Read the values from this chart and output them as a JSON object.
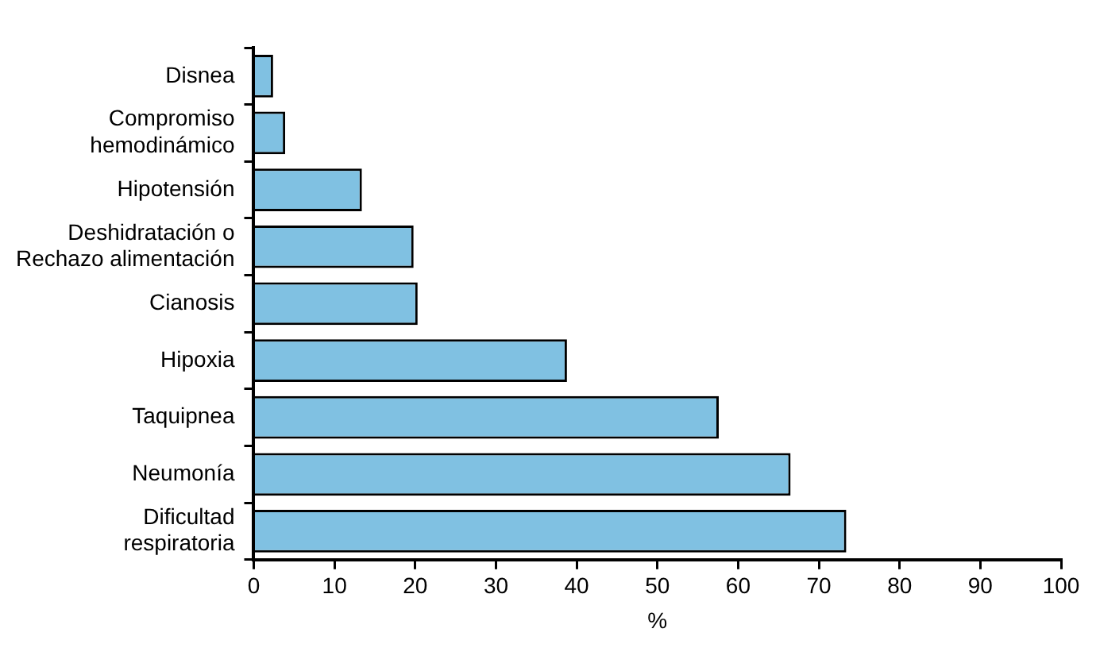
{
  "chart_data": {
    "type": "bar",
    "orientation": "horizontal",
    "xlabel": "%",
    "categories": [
      "Disnea",
      "Compromiso\nhemodinámico",
      "Hipotensión",
      "Deshidratación o\nRechazo alimentación",
      "Cianosis",
      "Hipoxia",
      "Taquipnea",
      "Neumonía",
      "Dificultad\nrespiratoria"
    ],
    "values": [
      2.4,
      3.9,
      13.4,
      19.8,
      20.3,
      38.8,
      57.6,
      66.5,
      73.4
    ],
    "color": "#80c1e2",
    "xlim": [
      0,
      100
    ],
    "xticks": [
      0,
      10,
      20,
      30,
      40,
      50,
      60,
      70,
      80,
      90,
      100
    ],
    "grid": false,
    "legend": false
  }
}
